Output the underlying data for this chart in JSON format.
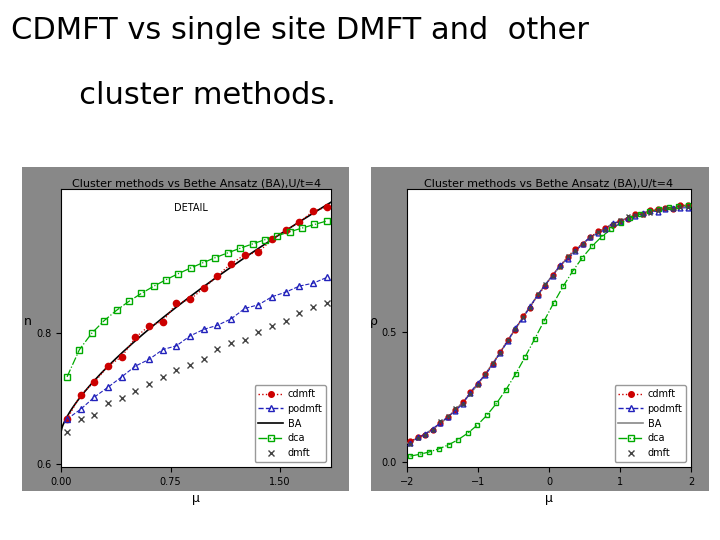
{
  "title_line1": "CDMFT vs single site DMFT and  other",
  "title_line2": "       cluster methods.",
  "title_fontsize": 22,
  "title_fontweight": "normal",
  "bg_color": "#ffffff",
  "panel_bg": "#888888",
  "plot_bg": "#ffffff",
  "left_plot": {
    "title": "Cluster methods vs Bethe Ansatz (BA),U/t=4",
    "subtitle": "DETAIL",
    "xlabel": "μ",
    "ylabel": "n",
    "xlim": [
      0,
      1.85
    ],
    "ylim": [
      0.595,
      1.02
    ],
    "xticks": [
      0,
      0.75,
      1.5
    ],
    "yticks": [
      0.6,
      0.8
    ],
    "title_fontsize": 8,
    "subtitle_fontsize": 7,
    "tick_fontsize": 7,
    "label_fontsize": 9
  },
  "right_plot": {
    "title": "Cluster methods vs Bethe Ansatz (BA),U/t=4",
    "xlabel": "μ",
    "ylabel": "ρ",
    "xlim": [
      -2,
      2
    ],
    "ylim": [
      -0.02,
      1.05
    ],
    "xticks": [
      -2,
      -1,
      0,
      1,
      2
    ],
    "yticks": [
      0,
      0.5
    ],
    "title_fontsize": 8,
    "tick_fontsize": 7,
    "label_fontsize": 9
  },
  "colors": {
    "cdmft": "#cc0000",
    "podmft": "#2222bb",
    "BA_left": "#000000",
    "BA_right": "#888888",
    "dca": "#00aa00",
    "dmft": "#444444"
  },
  "legend_fontsize": 7
}
